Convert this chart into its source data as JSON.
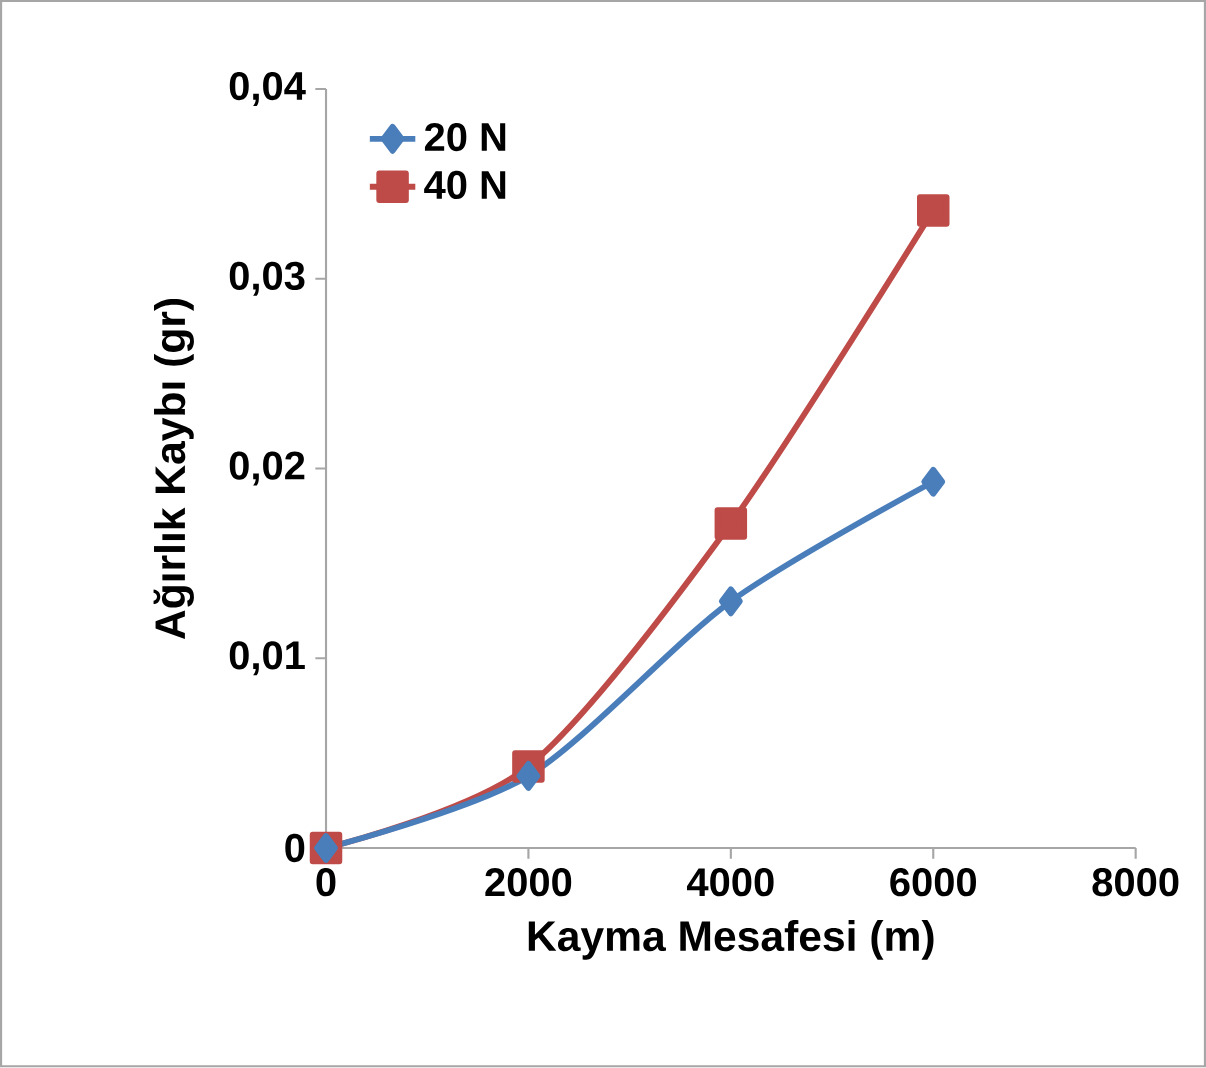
{
  "chart_data": {
    "type": "line",
    "xlabel": "Kayma Mesafesi (m)",
    "ylabel": "Ağırlık Kaybı (gr)",
    "x": [
      0,
      2000,
      4000,
      6000
    ],
    "series": [
      {
        "name": "20 N",
        "color": "#4a7ebb",
        "marker": "diamond",
        "values": [
          0,
          0.0038,
          0.013,
          0.0193
        ]
      },
      {
        "name": "40 N",
        "color": "#be4b48",
        "marker": "square",
        "values": [
          0,
          0.0043,
          0.0171,
          0.0336
        ]
      }
    ],
    "xlim": [
      0,
      8000
    ],
    "xticks": [
      0,
      2000,
      4000,
      6000,
      8000
    ],
    "ylim": [
      0,
      0.04
    ],
    "yticks": [
      {
        "value": 0,
        "label": "0"
      },
      {
        "value": 0.01,
        "label": "0,01"
      },
      {
        "value": 0.02,
        "label": "0,02"
      },
      {
        "value": 0.03,
        "label": "0,03"
      },
      {
        "value": 0.04,
        "label": "0,04"
      }
    ],
    "legend": "top left",
    "grid": false
  }
}
